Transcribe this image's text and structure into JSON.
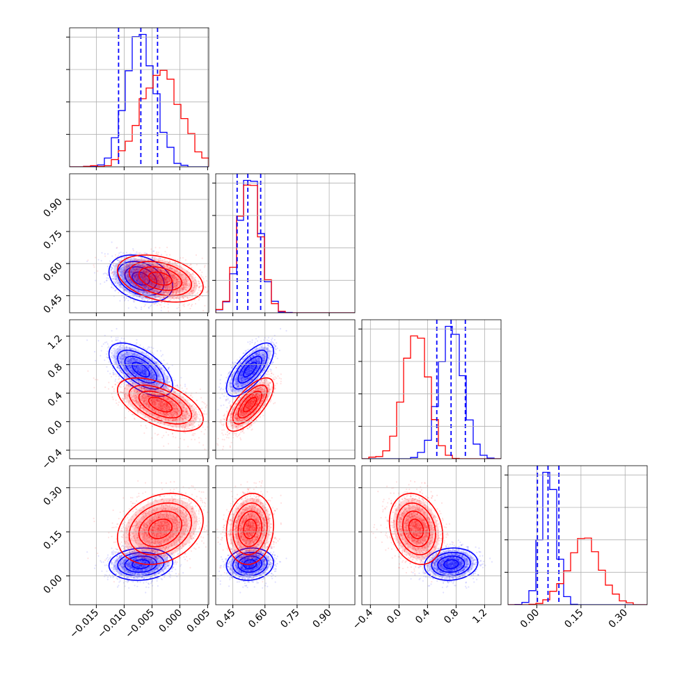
{
  "colors": {
    "blue": "#0000ff",
    "red": "#ff0000",
    "grid": "#b0b0b0"
  },
  "chart_data": {
    "type": "corner",
    "grid": true,
    "parameters": [
      {
        "ticks": [
          "−0.015",
          "−0.010",
          "−0.005",
          "0.000",
          "0.005"
        ],
        "tick_values": [
          -0.015,
          -0.01,
          -0.005,
          0.0,
          0.005
        ],
        "range": [
          -0.0198,
          0.0052
        ]
      },
      {
        "ticks": [
          "0.45",
          "0.60",
          "0.75",
          "0.90"
        ],
        "tick_values": [
          0.45,
          0.6,
          0.75,
          0.9
        ],
        "range": [
          0.37,
          1.02
        ]
      },
      {
        "ticks": [
          "−0.4",
          "0.0",
          "0.4",
          "0.8",
          "1.2"
        ],
        "tick_values": [
          -0.4,
          0.0,
          0.4,
          0.8,
          1.2
        ],
        "range": [
          -0.52,
          1.43
        ]
      },
      {
        "ticks": [
          "0.00",
          "0.15",
          "0.30"
        ],
        "tick_values": [
          0.0,
          0.15,
          0.3
        ],
        "range": [
          -0.098,
          0.375
        ]
      }
    ],
    "series": [
      {
        "color": "#0000ff",
        "mean": [
          -0.007,
          0.53,
          0.73,
          0.04
        ],
        "std": [
          0.0026,
          0.05,
          0.17,
          0.025
        ],
        "corr": [
          [
            1,
            -0.3,
            -0.6,
            0.1
          ],
          [
            -0.3,
            1,
            0.7,
            0.1
          ],
          [
            -0.6,
            0.7,
            1,
            0.1
          ],
          [
            0.1,
            0.1,
            0.1,
            1
          ]
        ],
        "quantiles": [
          [
            -0.011,
            -0.007,
            -0.004
          ],
          [
            0.47,
            0.52,
            0.58
          ],
          [
            0.53,
            0.73,
            0.93
          ],
          [
            0.002,
            0.038,
            0.075
          ]
        ]
      },
      {
        "color": "#ff0000",
        "mean": [
          -0.0035,
          0.53,
          0.24,
          0.16
        ],
        "std": [
          0.0035,
          0.05,
          0.17,
          0.055
        ],
        "corr": [
          [
            1,
            -0.35,
            -0.55,
            0.25
          ],
          [
            -0.35,
            1,
            0.7,
            0.1
          ],
          [
            -0.55,
            0.7,
            1,
            -0.2
          ],
          [
            0.25,
            0.1,
            -0.2,
            1
          ]
        ],
        "quantiles": null
      }
    ]
  }
}
